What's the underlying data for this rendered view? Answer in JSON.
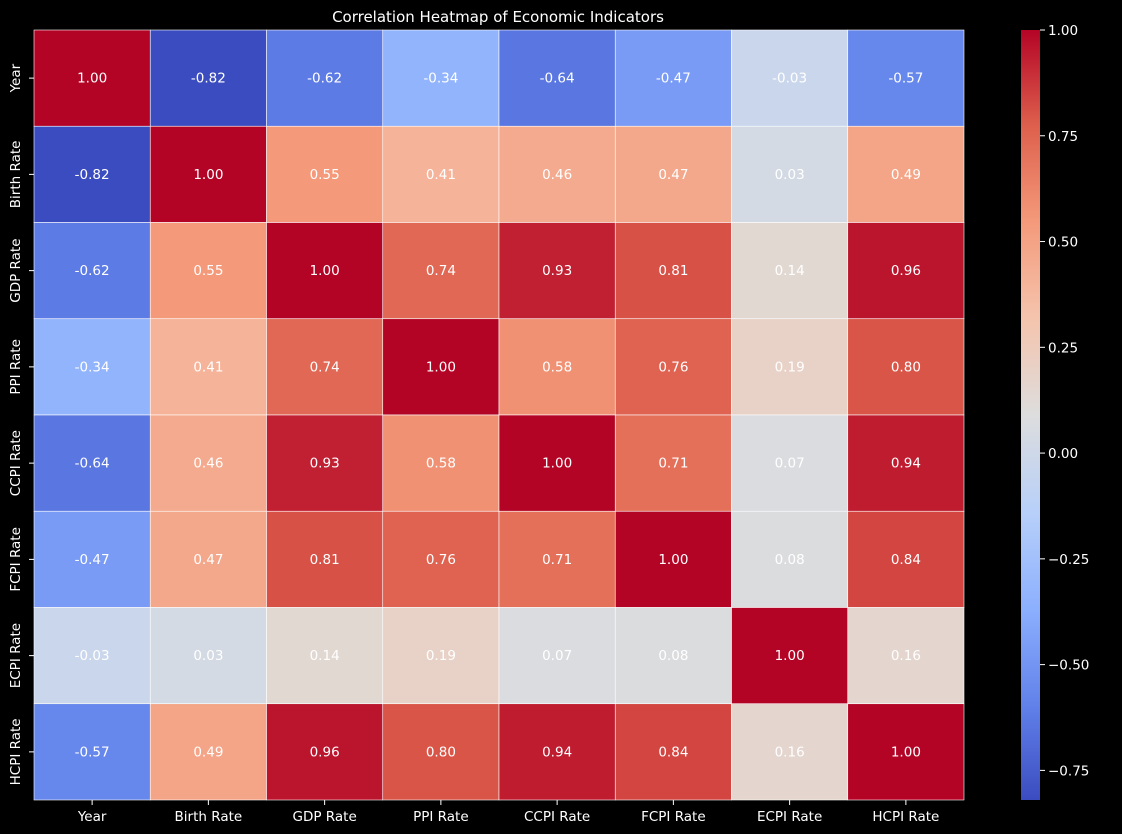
{
  "chart_data": {
    "type": "heatmap",
    "title": "Correlation Heatmap of Economic Indicators",
    "xlabel": "",
    "ylabel": "",
    "categories": [
      "Year",
      "Birth Rate",
      "GDP Rate",
      "PPI Rate",
      "CCPI Rate",
      "FCPI Rate",
      "ECPI Rate",
      "HCPI Rate"
    ],
    "matrix": [
      [
        1.0,
        -0.82,
        -0.62,
        -0.34,
        -0.64,
        -0.47,
        -0.03,
        -0.57
      ],
      [
        -0.82,
        1.0,
        0.55,
        0.41,
        0.46,
        0.47,
        0.03,
        0.49
      ],
      [
        -0.62,
        0.55,
        1.0,
        0.74,
        0.93,
        0.81,
        0.14,
        0.96
      ],
      [
        -0.34,
        0.41,
        0.74,
        1.0,
        0.58,
        0.76,
        0.19,
        0.8
      ],
      [
        -0.64,
        0.46,
        0.93,
        0.58,
        1.0,
        0.71,
        0.07,
        0.94
      ],
      [
        -0.47,
        0.47,
        0.81,
        0.76,
        0.71,
        1.0,
        0.08,
        0.84
      ],
      [
        -0.03,
        0.03,
        0.14,
        0.19,
        0.07,
        0.08,
        1.0,
        0.16
      ],
      [
        -0.57,
        0.49,
        0.96,
        0.8,
        0.94,
        0.84,
        0.16,
        1.0
      ]
    ],
    "annotation_format": "2 decimals",
    "colormap": "coolwarm",
    "colorbar": {
      "range": [
        -0.82,
        1.0
      ],
      "ticks": [
        1.0,
        0.75,
        0.5,
        0.25,
        0.0,
        -0.25,
        -0.5,
        -0.75
      ],
      "tick_labels": [
        "1.00",
        "0.75",
        "0.50",
        "0.25",
        "0.00",
        "−0.25",
        "−0.50",
        "−0.75"
      ],
      "placement": "right"
    },
    "grid": false,
    "background": "#000000",
    "text_color": "#ffffff",
    "cell_border_color": "#ffffff"
  }
}
